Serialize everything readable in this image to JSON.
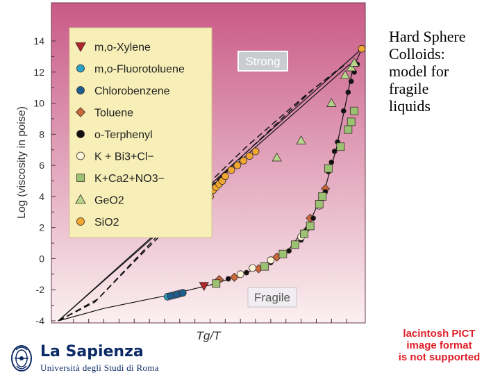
{
  "slide": {
    "title_lines": [
      "Hard Sphere",
      "Colloids:",
      "model for",
      "fragile",
      "liquids"
    ],
    "pict_notice_lines": [
      "lacintosh PICT",
      "image format",
      "is not supported"
    ],
    "logo_name": "La Sapienza",
    "logo_sub": "Università degli Studi di Roma"
  },
  "colors": {
    "panel_top": "#c95a86",
    "panel_bottom": "#fbf0f1",
    "legend_bg": "#f7efb7",
    "curve": "#111111",
    "strong_label_bg": "#c9ccd1",
    "fragile_label_bg": "#f1eef1"
  },
  "chart_data": {
    "type": "scatter",
    "xlabel": "Tg/T",
    "ylabel": "Log (viscosity in poise)",
    "xlim": [
      0,
      1
    ],
    "ylim": [
      -4,
      15
    ],
    "y_ticks": [
      14,
      12,
      10,
      8,
      6,
      4,
      2,
      0,
      -2,
      -4
    ],
    "y_tick_labels": [
      "14",
      "12",
      "10",
      "8",
      "6",
      "4",
      "2",
      "0",
      "-2",
      "-4"
    ],
    "annotations": [
      "Strong",
      "Fragile"
    ],
    "legend": [
      {
        "label": "m,o-Xylene",
        "marker": "triangle-down",
        "color": "#b0272b"
      },
      {
        "label": "m,o-Fluorotoluene",
        "marker": "circle",
        "color": "#2aa2c8"
      },
      {
        "label": "Chlorobenzene",
        "marker": "circle",
        "color": "#1c5f8e"
      },
      {
        "label": "Toluene",
        "marker": "diamond",
        "color": "#c8683a"
      },
      {
        "label": "o-Terphenyl",
        "marker": "circle",
        "color": "#111111"
      },
      {
        "label": "K + Bi3+Cl−",
        "marker": "circle-open",
        "color": "#fcf6d8"
      },
      {
        "label": "K+Ca2+NO3−",
        "marker": "square",
        "color": "#9bc173"
      },
      {
        "label": "GeO2",
        "marker": "triangle",
        "color": "#b7d48b"
      },
      {
        "label": "SiO2",
        "marker": "circle",
        "color": "#f0a830"
      }
    ],
    "lines": [
      {
        "name": "",
        "style": "solid",
        "points": [
          [
            0,
            -4
          ],
          [
            1,
            13.5
          ]
        ]
      },
      {
        "name": "",
        "style": "solid",
        "points": [
          [
            0,
            -4
          ],
          [
            0.96,
            12.5
          ]
        ]
      },
      {
        "name": "",
        "style": "dashed",
        "points": [
          [
            0,
            -4
          ],
          [
            0.13,
            -2.6
          ],
          [
            0.28,
            0.5
          ],
          [
            0.44,
            3.8
          ],
          [
            0.62,
            7.2
          ],
          [
            0.82,
            10.6
          ],
          [
            0.94,
            12.4
          ]
        ]
      },
      {
        "name": "",
        "style": "dashed",
        "points": [
          [
            0,
            -4
          ],
          [
            0.12,
            -2.8
          ],
          [
            0.27,
            0.2
          ],
          [
            0.45,
            3.7
          ],
          [
            0.65,
            7.4
          ],
          [
            0.84,
            10.9
          ],
          [
            0.95,
            12.6
          ]
        ]
      },
      {
        "name": "",
        "style": "solid",
        "points": [
          [
            0,
            -4
          ],
          [
            0.15,
            -3.2
          ],
          [
            0.35,
            -2.4
          ],
          [
            0.52,
            -1.6
          ],
          [
            0.66,
            -0.6
          ],
          [
            0.76,
            0.6
          ],
          [
            0.83,
            2.4
          ],
          [
            0.88,
            4.6
          ],
          [
            0.915,
            7
          ],
          [
            0.945,
            9.8
          ],
          [
            0.97,
            12.2
          ],
          [
            1,
            13.5
          ]
        ]
      }
    ],
    "series": [
      {
        "marker": "circle",
        "color": "#2aa2c8",
        "points": [
          [
            0.36,
            -2.45
          ],
          [
            0.38,
            -2.35
          ],
          [
            0.4,
            -2.25
          ]
        ]
      },
      {
        "marker": "circle",
        "color": "#1c5f8e",
        "points": [
          [
            0.37,
            -2.4
          ],
          [
            0.39,
            -2.3
          ],
          [
            0.41,
            -2.2
          ]
        ]
      },
      {
        "marker": "triangle-down",
        "color": "#b0272b",
        "points": [
          [
            0.48,
            -1.75
          ]
        ]
      },
      {
        "marker": "diamond",
        "color": "#c8683a",
        "points": [
          [
            0.53,
            -1.35
          ],
          [
            0.58,
            -1.2
          ],
          [
            0.66,
            -0.65
          ],
          [
            0.72,
            0.1
          ],
          [
            0.83,
            2.6
          ],
          [
            0.88,
            4.5
          ]
        ]
      },
      {
        "marker": "circle",
        "color": "#111111",
        "points": [
          [
            0.56,
            -1.3
          ],
          [
            0.62,
            -0.9
          ],
          [
            0.7,
            -0.25
          ],
          [
            0.76,
            0.5
          ],
          [
            0.78,
            0.8
          ],
          [
            0.8,
            1.2
          ],
          [
            0.82,
            1.9
          ],
          [
            0.84,
            2.6
          ],
          [
            0.86,
            3.6
          ],
          [
            0.88,
            4.3
          ],
          [
            0.89,
            5.6
          ],
          [
            0.9,
            6.2
          ],
          [
            0.91,
            6.9
          ],
          [
            0.92,
            7.5
          ],
          [
            0.94,
            9.5
          ],
          [
            0.955,
            10.7
          ],
          [
            0.965,
            11.4
          ],
          [
            0.975,
            12.0
          ],
          [
            0.985,
            12.5
          ]
        ]
      },
      {
        "marker": "circle-open",
        "color": "#fcf6d8",
        "points": [
          [
            0.6,
            -1.0
          ],
          [
            0.64,
            -0.6
          ],
          [
            0.7,
            -0.1
          ],
          [
            0.74,
            0.3
          ],
          [
            0.8,
            1.4
          ],
          [
            0.86,
            3.4
          ]
        ]
      },
      {
        "marker": "square",
        "color": "#9bc173",
        "points": [
          [
            0.52,
            -1.6
          ],
          [
            0.68,
            -0.5
          ],
          [
            0.74,
            0.3
          ],
          [
            0.78,
            0.9
          ],
          [
            0.81,
            1.6
          ],
          [
            0.83,
            2.1
          ],
          [
            0.86,
            3.5
          ],
          [
            0.87,
            4.0
          ],
          [
            0.89,
            5.8
          ],
          [
            0.93,
            7.2
          ],
          [
            0.955,
            8.3
          ],
          [
            0.965,
            8.8
          ],
          [
            0.975,
            9.5
          ]
        ]
      },
      {
        "marker": "triangle",
        "color": "#b7d48b",
        "points": [
          [
            0.72,
            6.5
          ],
          [
            0.8,
            7.6
          ],
          [
            0.9,
            10.0
          ],
          [
            0.945,
            11.8
          ],
          [
            0.965,
            12.3
          ],
          [
            0.975,
            12.6
          ]
        ]
      },
      {
        "marker": "circle",
        "color": "#f0a830",
        "points": [
          [
            0.5,
            4.0
          ],
          [
            0.51,
            4.4
          ],
          [
            0.52,
            4.6
          ],
          [
            0.53,
            4.8
          ],
          [
            0.54,
            5.0
          ],
          [
            0.55,
            5.3
          ],
          [
            0.57,
            5.7
          ],
          [
            0.59,
            6.0
          ],
          [
            0.61,
            6.3
          ],
          [
            0.63,
            6.6
          ],
          [
            0.65,
            6.9
          ],
          [
            1.0,
            13.5
          ]
        ]
      }
    ]
  }
}
